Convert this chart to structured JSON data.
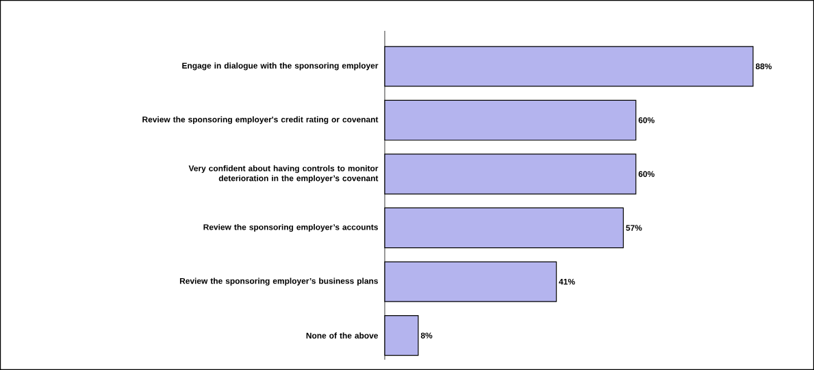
{
  "chart_data": {
    "type": "bar",
    "orientation": "horizontal",
    "categories": [
      "Engage in dialogue with the sponsoring employer",
      "Review the sponsoring employer's credit rating or covenant",
      "Very confident about having controls to monitor deterioration in the employer’s covenant",
      "Review the sponsoring employer’s accounts",
      "Review the sponsoring employer’s business plans",
      "None of the above"
    ],
    "values": [
      88,
      60,
      60,
      57,
      41,
      8
    ],
    "color": "#b4b4ee",
    "value_labels": [
      "88%",
      "60%",
      "60%",
      "57%",
      "41%",
      "8%"
    ]
  }
}
